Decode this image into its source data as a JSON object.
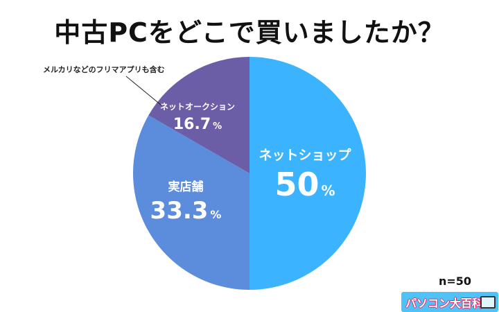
{
  "title": "中古PCをどこで買いましたか？",
  "chart_data": {
    "type": "pie",
    "slices": [
      {
        "label": "ネットショップ",
        "value": 50,
        "display": "50",
        "color": "#3cb3ff"
      },
      {
        "label": "実店舗",
        "value": 33.3,
        "display": "33.3",
        "color": "#5c8ddd"
      },
      {
        "label": "ネットオークション",
        "value": 16.7,
        "display": "16.7",
        "color": "#6b5da6"
      }
    ],
    "unit": "%",
    "annotation": "メルカリなどのフリマアプリも含む",
    "sample_size": "n=50"
  },
  "logo": {
    "text": "パソコン大百科",
    "icon": "laptop-icon"
  }
}
